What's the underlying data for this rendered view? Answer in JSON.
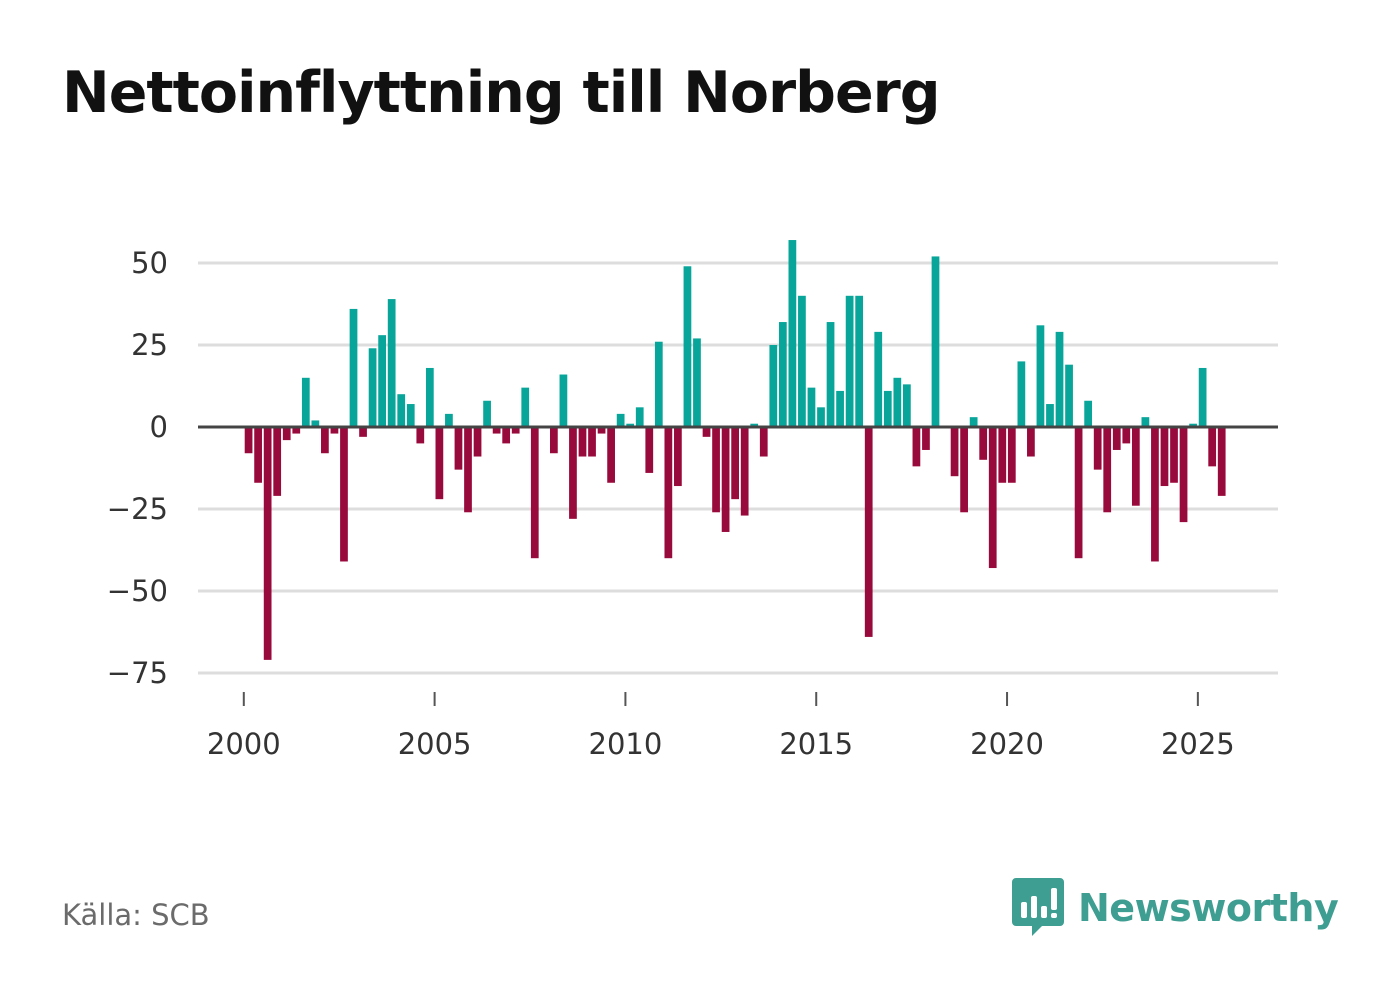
{
  "title": "Nettoinflyttning till Norberg",
  "source": "Källa: SCB",
  "brand": "Newsworthy",
  "colors": {
    "positive": "#08a59a",
    "negative": "#990a3c",
    "grid": "#dddddd",
    "zero": "#444444",
    "brand": "#3f9e92"
  },
  "chart_data": {
    "type": "bar",
    "title": "Nettoinflyttning till Norberg",
    "xlabel": "",
    "ylabel": "",
    "x_ticks": [
      2000,
      2005,
      2010,
      2015,
      2020,
      2025
    ],
    "y_ticks": [
      50,
      25,
      0,
      -25,
      -50,
      -75
    ],
    "y_tick_labels": [
      "50",
      "25",
      "0",
      "−25",
      "−50",
      "−75"
    ],
    "xlim": [
      1998.8,
      2027.1
    ],
    "ylim": [
      -79,
      58
    ],
    "start": 2000.125,
    "step": 0.25,
    "values": [
      -8,
      -17,
      -71,
      -21,
      -4,
      -2,
      15,
      2,
      -8,
      -2,
      -41,
      36,
      -3,
      24,
      28,
      39,
      10,
      7,
      -5,
      18,
      -22,
      4,
      -13,
      -26,
      -9,
      8,
      -2,
      -5,
      -2,
      12,
      -40,
      0,
      -8,
      16,
      -28,
      -9,
      -9,
      -2,
      -17,
      4,
      1,
      6,
      -14,
      26,
      -40,
      -18,
      49,
      27,
      -3,
      -26,
      -32,
      -22,
      -27,
      1,
      -9,
      25,
      32,
      57,
      40,
      12,
      6,
      32,
      11,
      40,
      40,
      -64,
      29,
      11,
      15,
      13,
      -12,
      -7,
      52,
      0,
      -15,
      -26,
      3,
      -10,
      -43,
      -17,
      -17,
      20,
      -9,
      31,
      7,
      29,
      19,
      -40,
      8,
      -13,
      -26,
      -7,
      -5,
      -24,
      3,
      -41,
      -18,
      -17,
      -29,
      1,
      18,
      -12,
      -21
    ]
  }
}
